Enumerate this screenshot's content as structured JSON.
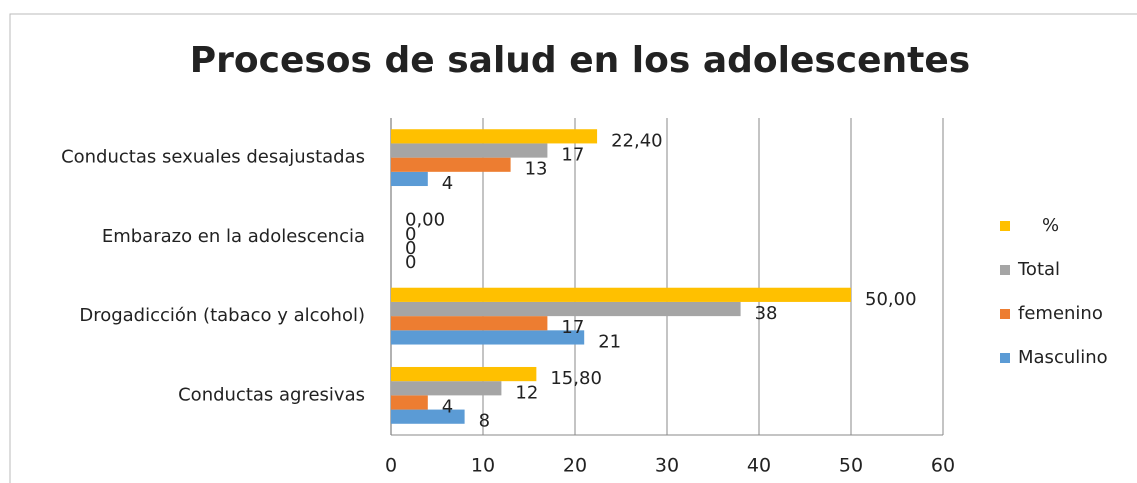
{
  "chart_data": {
    "type": "hbar",
    "title": "Procesos de salud en los adolescentes",
    "categories": [
      "Conductas sexuales desajustadas",
      "Embarazo en la adolescencia",
      "Drogadicción (tabaco y alcohol)",
      "Conductas agresivas"
    ],
    "series": [
      {
        "name": "Masculino",
        "color": "#5b9bd5",
        "values": [
          4,
          0,
          21,
          8
        ]
      },
      {
        "name": "femenino",
        "color": "#ed7d31",
        "values": [
          13,
          0,
          17,
          4
        ]
      },
      {
        "name": "Total",
        "color": "#a5a5a5",
        "values": [
          17,
          0,
          38,
          12
        ]
      },
      {
        "name": "%",
        "color": "#ffc000",
        "values": [
          22.4,
          0,
          50,
          15.8
        ],
        "value_labels": [
          "22,40",
          "0,00",
          "50,00",
          "15,80"
        ]
      }
    ],
    "xlim": [
      0,
      60
    ],
    "xticks": [
      0,
      10,
      20,
      30,
      40,
      50,
      60
    ],
    "grid": true,
    "legend": "right"
  }
}
